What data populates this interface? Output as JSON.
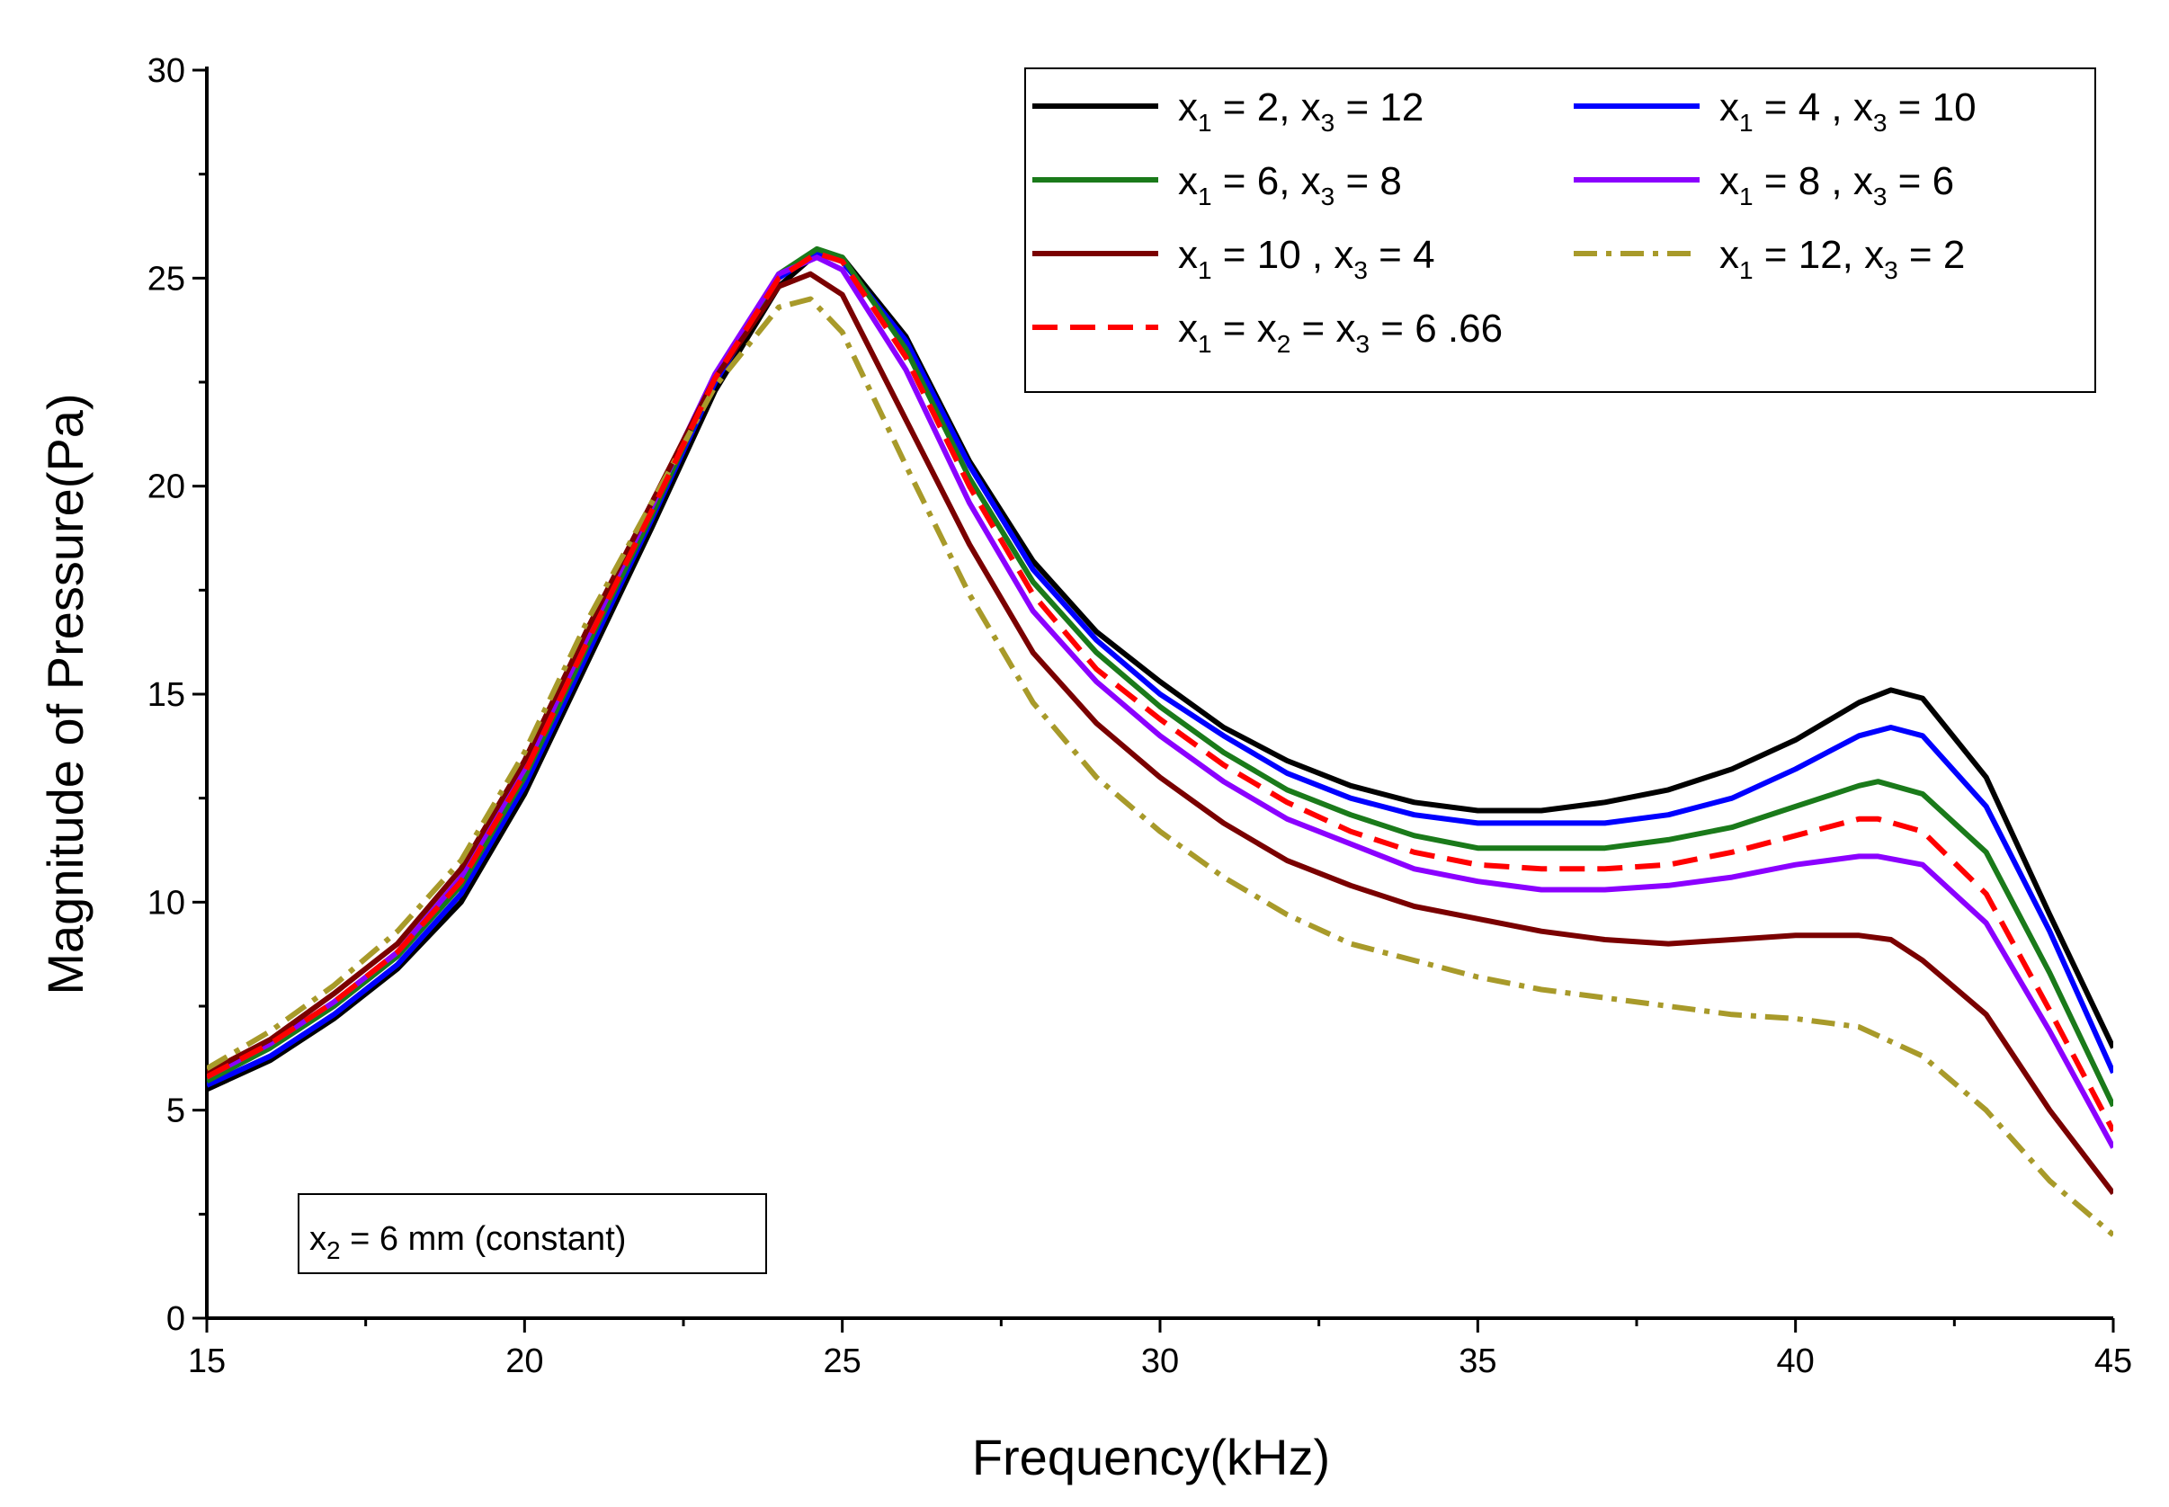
{
  "chart_data": {
    "type": "line",
    "title": "",
    "xlabel": "Frequency(kHz)",
    "ylabel": "Magnitude of Pressure(Pa)",
    "xlim": [
      15,
      45
    ],
    "ylim": [
      0,
      30
    ],
    "x_ticks": [
      15,
      20,
      25,
      30,
      35,
      40,
      45
    ],
    "y_ticks": [
      0,
      5,
      10,
      15,
      20,
      25,
      30
    ],
    "grid": false,
    "legend_position": "top-right",
    "annotation": {
      "prefix": "x",
      "sub": "2",
      "text": " = 6 mm (constant)"
    },
    "series": [
      {
        "name": "x1 = 2, x3 = 12",
        "label_parts": [
          {
            "t": "x"
          },
          {
            "s": "1"
          },
          {
            "t": " = 2,  x"
          },
          {
            "s": "3"
          },
          {
            "t": " = 12"
          }
        ],
        "color": "#000000",
        "dash": "solid",
        "x": [
          15,
          16,
          17,
          18,
          19,
          20,
          21,
          22,
          23,
          24,
          24.6,
          25,
          26,
          27,
          28,
          29,
          30,
          31,
          32,
          33,
          34,
          35,
          36,
          37,
          38,
          39,
          40,
          41,
          41.5,
          42,
          43,
          44,
          45
        ],
        "y": [
          5.5,
          6.2,
          7.2,
          8.4,
          10.0,
          12.6,
          15.8,
          19.0,
          22.3,
          24.8,
          25.6,
          25.5,
          23.6,
          20.6,
          18.2,
          16.5,
          15.3,
          14.2,
          13.4,
          12.8,
          12.4,
          12.2,
          12.2,
          12.4,
          12.7,
          13.2,
          13.9,
          14.8,
          15.1,
          14.9,
          13.0,
          9.7,
          6.5
        ]
      },
      {
        "name": "x1 = 4, x3 = 10",
        "label_parts": [
          {
            "t": "x"
          },
          {
            "s": "1"
          },
          {
            "t": " = 4 , x"
          },
          {
            "s": "3"
          },
          {
            "t": " = 10"
          }
        ],
        "color": "#0000ff",
        "dash": "solid",
        "x": [
          15,
          16,
          17,
          18,
          19,
          20,
          21,
          22,
          23,
          24,
          24.6,
          25,
          26,
          27,
          28,
          29,
          30,
          31,
          32,
          33,
          34,
          35,
          36,
          37,
          38,
          39,
          40,
          41,
          41.5,
          42,
          43,
          44,
          45
        ],
        "y": [
          5.6,
          6.3,
          7.3,
          8.5,
          10.2,
          12.8,
          16.0,
          19.2,
          22.5,
          25.0,
          25.6,
          25.4,
          23.5,
          20.5,
          18.0,
          16.3,
          15.0,
          14.0,
          13.1,
          12.5,
          12.1,
          11.9,
          11.9,
          11.9,
          12.1,
          12.5,
          13.2,
          14.0,
          14.2,
          14.0,
          12.3,
          9.3,
          5.9
        ]
      },
      {
        "name": "x1 = 6, x3 = 8",
        "label_parts": [
          {
            "t": "x"
          },
          {
            "s": "1"
          },
          {
            "t": " = 6,  x"
          },
          {
            "s": "3"
          },
          {
            "t": " = 8"
          }
        ],
        "color": "#1a7a1a",
        "dash": "solid",
        "x": [
          15,
          16,
          17,
          18,
          19,
          20,
          21,
          22,
          23,
          24,
          24.6,
          25,
          26,
          27,
          28,
          29,
          30,
          31,
          32,
          33,
          34,
          35,
          36,
          37,
          38,
          39,
          40,
          41,
          41.3,
          42,
          43,
          44,
          45
        ],
        "y": [
          5.7,
          6.5,
          7.5,
          8.7,
          10.4,
          13.0,
          16.2,
          19.3,
          22.6,
          25.1,
          25.7,
          25.5,
          23.3,
          20.2,
          17.7,
          16.0,
          14.7,
          13.6,
          12.7,
          12.1,
          11.6,
          11.3,
          11.3,
          11.3,
          11.5,
          11.8,
          12.3,
          12.8,
          12.9,
          12.6,
          11.2,
          8.3,
          5.1
        ]
      },
      {
        "name": "x1 = 8, x3 = 6",
        "label_parts": [
          {
            "t": "x"
          },
          {
            "s": "1"
          },
          {
            "t": " = 8 , x"
          },
          {
            "s": "3"
          },
          {
            "t": " = 6"
          }
        ],
        "color": "#8b00ff",
        "dash": "solid",
        "x": [
          15,
          16,
          17,
          18,
          19,
          20,
          21,
          22,
          23,
          24,
          24.6,
          25,
          26,
          27,
          28,
          29,
          30,
          31,
          32,
          33,
          34,
          35,
          36,
          37,
          38,
          39,
          40,
          41,
          41.3,
          42,
          43,
          44,
          45
        ],
        "y": [
          5.8,
          6.6,
          7.6,
          8.8,
          10.6,
          13.2,
          16.4,
          19.5,
          22.7,
          25.1,
          25.5,
          25.2,
          22.8,
          19.6,
          17.0,
          15.3,
          14.0,
          12.9,
          12.0,
          11.4,
          10.8,
          10.5,
          10.3,
          10.3,
          10.4,
          10.6,
          10.9,
          11.1,
          11.1,
          10.9,
          9.5,
          6.9,
          4.1
        ]
      },
      {
        "name": "x1 = 10, x3 = 4",
        "label_parts": [
          {
            "t": "x"
          },
          {
            "s": "1"
          },
          {
            "t": " = 10 , x"
          },
          {
            "s": "3"
          },
          {
            "t": " = 4"
          }
        ],
        "color": "#7a0000",
        "dash": "solid",
        "x": [
          15,
          16,
          17,
          18,
          19,
          20,
          21,
          22,
          23,
          24,
          24.5,
          25,
          26,
          27,
          28,
          29,
          30,
          31,
          32,
          33,
          34,
          35,
          36,
          37,
          38,
          39,
          40,
          41,
          41.5,
          42,
          43,
          44,
          45
        ],
        "y": [
          5.9,
          6.7,
          7.8,
          9.0,
          10.8,
          13.4,
          16.6,
          19.6,
          22.6,
          24.8,
          25.1,
          24.6,
          21.6,
          18.6,
          16.0,
          14.3,
          13.0,
          11.9,
          11.0,
          10.4,
          9.9,
          9.6,
          9.3,
          9.1,
          9.0,
          9.1,
          9.2,
          9.2,
          9.1,
          8.6,
          7.3,
          5.0,
          3.0
        ]
      },
      {
        "name": "x1 = 12, x3 = 2",
        "label_parts": [
          {
            "t": "x"
          },
          {
            "s": "1"
          },
          {
            "t": " = 12, x"
          },
          {
            "s": "3"
          },
          {
            "t": " = 2"
          }
        ],
        "color": "#a89a2a",
        "dash": "dashdot",
        "x": [
          15,
          16,
          17,
          18,
          19,
          20,
          21,
          22,
          23,
          24,
          24.5,
          25,
          26,
          27,
          28,
          29,
          30,
          31,
          32,
          33,
          34,
          35,
          36,
          37,
          38,
          39,
          40,
          41,
          42,
          43,
          44,
          45
        ],
        "y": [
          6.0,
          6.9,
          8.0,
          9.3,
          11.0,
          13.6,
          16.8,
          19.6,
          22.4,
          24.3,
          24.5,
          23.7,
          20.5,
          17.4,
          14.8,
          13.0,
          11.7,
          10.6,
          9.7,
          9.0,
          8.6,
          8.2,
          7.9,
          7.7,
          7.5,
          7.3,
          7.2,
          7.0,
          6.3,
          5.0,
          3.3,
          2.0
        ]
      },
      {
        "name": "x1 = x2 = x3 = 6.66",
        "label_parts": [
          {
            "t": "x"
          },
          {
            "s": "1"
          },
          {
            "t": " = x"
          },
          {
            "s": "2"
          },
          {
            "t": " = x"
          },
          {
            "s": "3"
          },
          {
            "t": " = 6 .66"
          }
        ],
        "color": "#ff0000",
        "dash": "dashed",
        "x": [
          15,
          16,
          17,
          18,
          19,
          20,
          21,
          22,
          23,
          24,
          24.6,
          25,
          26,
          27,
          28,
          29,
          30,
          31,
          32,
          33,
          34,
          35,
          36,
          37,
          38,
          39,
          40,
          41,
          41.3,
          42,
          43,
          44,
          45
        ],
        "y": [
          5.8,
          6.6,
          7.6,
          8.8,
          10.5,
          13.1,
          16.3,
          19.4,
          22.6,
          25.0,
          25.6,
          25.4,
          23.1,
          20.0,
          17.4,
          15.6,
          14.4,
          13.3,
          12.4,
          11.7,
          11.2,
          10.9,
          10.8,
          10.8,
          10.9,
          11.2,
          11.6,
          12.0,
          12.0,
          11.7,
          10.2,
          7.4,
          4.5
        ]
      }
    ]
  }
}
